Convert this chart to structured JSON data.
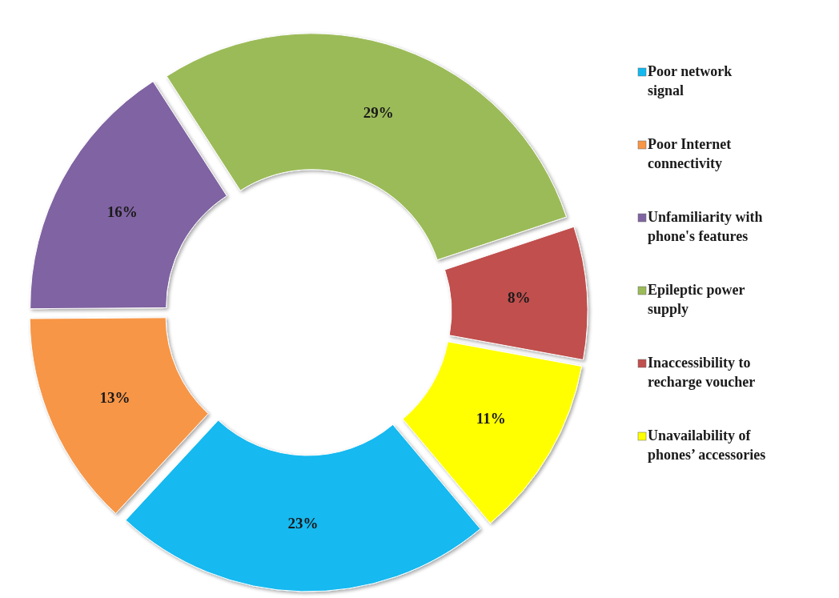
{
  "chart_data": {
    "type": "donut",
    "categories": [
      "Poor network signal",
      "Poor Internet connectivity",
      "Unfamiliarity with phone's features",
      "Epileptic power supply",
      "Inaccessibility to recharge voucher",
      "Unavailability of phones’ accessories"
    ],
    "values": [
      23,
      13,
      16,
      29,
      8,
      11
    ],
    "colors": [
      "#12b9f0",
      "#f79646",
      "#8064a2",
      "#9bbb59",
      "#c0504d",
      "#ffff00"
    ],
    "value_labels": [
      "23%",
      "13%",
      "16%",
      "29%",
      "8%",
      "11%"
    ],
    "legend": "right"
  }
}
